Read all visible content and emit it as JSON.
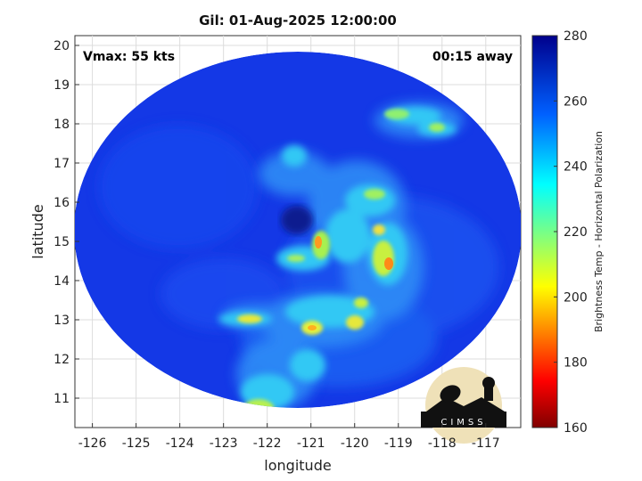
{
  "title": "Gil: 01-Aug-2025 12:00:00",
  "vmax_label": "Vmax: 55 kts",
  "away_label": "00:15 away",
  "xlabel": "longitude",
  "ylabel": "latitude",
  "x_ticks": [
    "-126",
    "-125",
    "-124",
    "-123",
    "-122",
    "-121",
    "-120",
    "-119",
    "-118",
    "-117"
  ],
  "y_ticks": [
    "20",
    "19",
    "18",
    "17",
    "16",
    "15",
    "14",
    "13",
    "12",
    "11"
  ],
  "x_tick_values": [
    -126,
    -125,
    -124,
    -123,
    -122,
    -121,
    -120,
    -119,
    -118,
    -117
  ],
  "y_tick_values": [
    20,
    19,
    18,
    17,
    16,
    15,
    14,
    13,
    12,
    11
  ],
  "xlim": [
    -126.4,
    -116.2
  ],
  "ylim": [
    10.25,
    20.25
  ],
  "colorbar": {
    "label": "Brightness Temp - Horizontal Polarization",
    "ticks": [
      "280",
      "260",
      "240",
      "220",
      "200",
      "180",
      "160"
    ],
    "tick_values": [
      280,
      260,
      240,
      220,
      200,
      180,
      160
    ],
    "range": [
      160,
      280
    ]
  },
  "logo_text": "CIMSS",
  "colors": {
    "background_blue": "#1438e6",
    "eye_dark": "#0a1f8f",
    "band_cyan": "#33e0f0"
  }
}
